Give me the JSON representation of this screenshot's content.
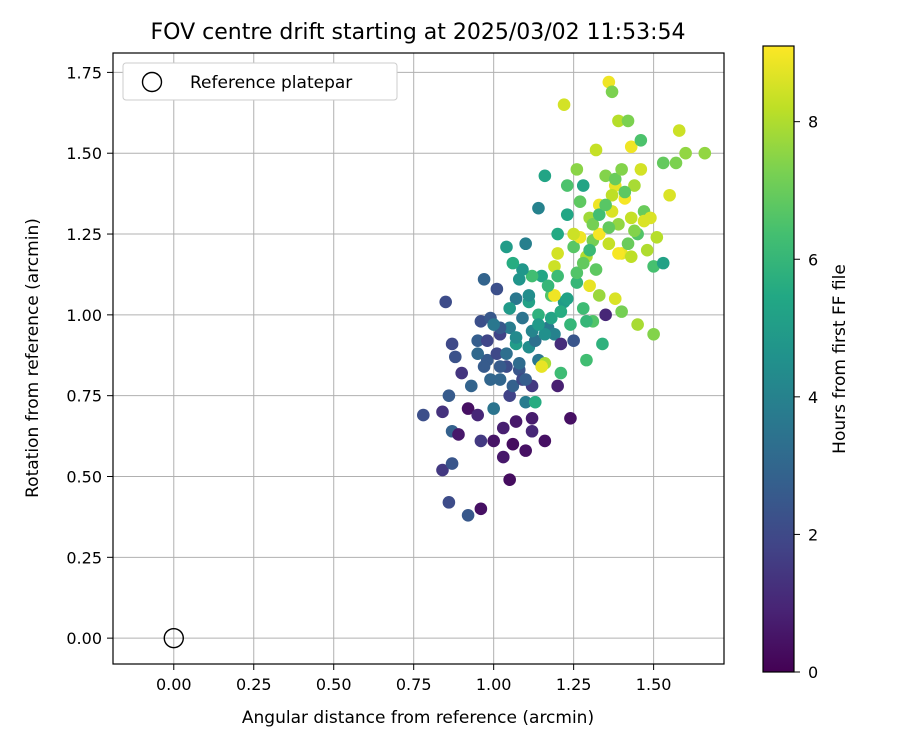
{
  "chart_data": {
    "type": "scatter",
    "title": "FOV centre drift starting at 2025/03/02 11:53:54",
    "xlabel": "Angular distance from reference (arcmin)",
    "ylabel": "Rotation from reference (arcmin)",
    "xlim": [
      -0.19,
      1.72
    ],
    "ylim": [
      -0.08,
      1.81
    ],
    "xticks": [
      "0.00",
      "0.25",
      "0.50",
      "0.75",
      "1.00",
      "1.25",
      "1.50"
    ],
    "yticks": [
      "0.00",
      "0.25",
      "0.50",
      "0.75",
      "1.00",
      "1.25",
      "1.50",
      "1.75"
    ],
    "grid": true,
    "legend": {
      "position": "top-left",
      "entries": [
        "Reference platepar"
      ]
    },
    "reference_point": {
      "x": 0.0,
      "y": 0.0,
      "marker": "open-circle"
    },
    "colorbar": {
      "label": "Hours from first FF file",
      "range": [
        0,
        9.1
      ],
      "ticks": [
        "0",
        "2",
        "4",
        "6",
        "8"
      ],
      "colormap": "viridis"
    },
    "points": [
      [
        0.78,
        0.69,
        2.2
      ],
      [
        0.84,
        0.52,
        1.5
      ],
      [
        0.86,
        0.42,
        2.1
      ],
      [
        0.87,
        0.54,
        2.4
      ],
      [
        0.85,
        1.04,
        2.1
      ],
      [
        0.86,
        0.75,
        2.6
      ],
      [
        0.84,
        0.7,
        1.3
      ],
      [
        0.87,
        0.64,
        2.8
      ],
      [
        0.88,
        0.87,
        2.3
      ],
      [
        0.87,
        0.91,
        2.0
      ],
      [
        0.89,
        0.63,
        0.6
      ],
      [
        0.9,
        0.82,
        1.4
      ],
      [
        0.92,
        0.71,
        0.4
      ],
      [
        0.92,
        0.38,
        2.5
      ],
      [
        0.95,
        0.69,
        1.0
      ],
      [
        0.96,
        0.4,
        0.4
      ],
      [
        0.96,
        0.61,
        1.5
      ],
      [
        0.95,
        0.92,
        2.7
      ],
      [
        0.96,
        0.98,
        2.2
      ],
      [
        0.97,
        1.11,
        2.9
      ],
      [
        0.98,
        0.92,
        1.9
      ],
      [
        0.99,
        0.99,
        2.5
      ],
      [
        1.0,
        0.71,
        3.5
      ],
      [
        1.0,
        0.61,
        0.5
      ],
      [
        0.98,
        0.86,
        2.6
      ],
      [
        1.01,
        0.88,
        2.0
      ],
      [
        1.01,
        1.08,
        2.2
      ],
      [
        1.02,
        0.94,
        1.8
      ],
      [
        1.02,
        0.8,
        3.0
      ],
      [
        1.03,
        0.65,
        0.8
      ],
      [
        1.03,
        0.56,
        0.6
      ],
      [
        1.04,
        0.84,
        2.1
      ],
      [
        1.04,
        1.21,
        5.0
      ],
      [
        1.05,
        0.49,
        0.3
      ],
      [
        1.05,
        0.75,
        1.8
      ],
      [
        1.05,
        0.96,
        3.8
      ],
      [
        1.06,
        0.78,
        2.8
      ],
      [
        1.07,
        1.05,
        3.6
      ],
      [
        1.06,
        0.6,
        0.3
      ],
      [
        1.07,
        0.67,
        0.6
      ],
      [
        1.07,
        0.91,
        5.0
      ],
      [
        1.08,
        0.83,
        2.4
      ],
      [
        1.08,
        1.11,
        4.7
      ],
      [
        1.09,
        0.8,
        2.0
      ],
      [
        1.1,
        0.58,
        0.4
      ],
      [
        1.1,
        0.73,
        3.8
      ],
      [
        1.1,
        1.22,
        3.9
      ],
      [
        1.11,
        0.9,
        4.4
      ],
      [
        1.11,
        1.04,
        5.2
      ],
      [
        1.12,
        0.78,
        1.5
      ],
      [
        1.12,
        0.68,
        0.7
      ],
      [
        1.12,
        0.64,
        1.0
      ],
      [
        1.13,
        0.73,
        5.6
      ],
      [
        1.14,
        1.33,
        4.0
      ],
      [
        1.14,
        0.86,
        3.6
      ],
      [
        1.15,
        1.12,
        5.4
      ],
      [
        1.16,
        0.85,
        7.9
      ],
      [
        1.16,
        1.43,
        5.3
      ],
      [
        1.16,
        0.61,
        0.4
      ],
      [
        1.17,
        0.96,
        3.7
      ],
      [
        1.18,
        1.06,
        6.6
      ],
      [
        1.19,
        0.94,
        4.0
      ],
      [
        1.19,
        1.15,
        8.4
      ],
      [
        1.2,
        1.25,
        5.5
      ],
      [
        1.2,
        0.78,
        0.8
      ],
      [
        1.21,
        0.82,
        6.2
      ],
      [
        1.21,
        0.91,
        1.2
      ],
      [
        1.22,
        1.65,
        8.5
      ],
      [
        1.22,
        1.04,
        5.0
      ],
      [
        1.23,
        1.4,
        6.5
      ],
      [
        1.23,
        1.31,
        5.4
      ],
      [
        1.24,
        0.97,
        6.0
      ],
      [
        1.24,
        0.68,
        0.4
      ],
      [
        1.25,
        0.92,
        2.4
      ],
      [
        1.25,
        1.21,
        6.7
      ],
      [
        1.26,
        1.45,
        7.5
      ],
      [
        1.26,
        1.1,
        6.0
      ],
      [
        1.27,
        1.35,
        6.8
      ],
      [
        1.27,
        1.24,
        8.9
      ],
      [
        1.28,
        1.4,
        5.3
      ],
      [
        1.28,
        1.02,
        6.2
      ],
      [
        1.29,
        1.18,
        8.0
      ],
      [
        1.29,
        0.86,
        6.3
      ],
      [
        1.3,
        1.3,
        7.8
      ],
      [
        1.3,
        1.09,
        8.8
      ],
      [
        1.31,
        0.98,
        6.6
      ],
      [
        1.31,
        1.23,
        7.2
      ],
      [
        1.32,
        1.51,
        8.3
      ],
      [
        1.32,
        1.14,
        6.8
      ],
      [
        1.33,
        1.34,
        8.9
      ],
      [
        1.33,
        1.06,
        7.7
      ],
      [
        1.34,
        0.91,
        5.8
      ],
      [
        1.35,
        1.43,
        7.4
      ],
      [
        1.35,
        1.0,
        1.0
      ],
      [
        1.36,
        1.72,
        8.9
      ],
      [
        1.36,
        1.22,
        8.3
      ],
      [
        1.37,
        1.69,
        7.3
      ],
      [
        1.37,
        1.32,
        8.6
      ],
      [
        1.38,
        1.05,
        8.6
      ],
      [
        1.38,
        1.4,
        8.8
      ],
      [
        1.39,
        1.6,
        8.1
      ],
      [
        1.39,
        1.28,
        7.6
      ],
      [
        1.4,
        1.19,
        8.8
      ],
      [
        1.4,
        1.01,
        7.2
      ],
      [
        1.41,
        1.36,
        9.0
      ],
      [
        1.42,
        1.6,
        7.3
      ],
      [
        1.42,
        1.22,
        7.0
      ],
      [
        1.43,
        1.52,
        8.9
      ],
      [
        1.43,
        1.3,
        8.3
      ],
      [
        1.44,
        1.4,
        7.9
      ],
      [
        1.45,
        0.97,
        7.9
      ],
      [
        1.45,
        1.25,
        6.6
      ],
      [
        1.46,
        1.54,
        6.5
      ],
      [
        1.46,
        1.45,
        8.5
      ],
      [
        1.47,
        1.32,
        7.0
      ],
      [
        1.48,
        1.2,
        8.0
      ],
      [
        1.49,
        1.3,
        8.6
      ],
      [
        1.5,
        0.94,
        7.4
      ],
      [
        1.5,
        1.15,
        6.4
      ],
      [
        1.51,
        1.24,
        8.1
      ],
      [
        1.53,
        1.16,
        5.2
      ],
      [
        1.53,
        1.47,
        6.9
      ],
      [
        1.55,
        1.37,
        8.6
      ],
      [
        1.57,
        1.47,
        7.3
      ],
      [
        1.58,
        1.57,
        8.4
      ],
      [
        1.6,
        1.5,
        7.6
      ],
      [
        1.66,
        1.5,
        7.6
      ],
      [
        1.25,
        1.25,
        8.4
      ],
      [
        1.33,
        1.25,
        9.0
      ],
      [
        1.39,
        1.19,
        9.0
      ],
      [
        1.2,
        1.19,
        8.5
      ],
      [
        1.36,
        1.27,
        6.9
      ],
      [
        1.37,
        1.37,
        8.2
      ],
      [
        1.41,
        1.38,
        6.8
      ],
      [
        1.44,
        1.26,
        7.4
      ],
      [
        1.47,
        1.29,
        8.6
      ],
      [
        1.43,
        1.18,
        8.2
      ],
      [
        1.15,
        0.84,
        8.8
      ],
      [
        1.19,
        1.06,
        8.9
      ],
      [
        1.29,
        0.98,
        6.0
      ],
      [
        1.09,
        0.99,
        3.5
      ],
      [
        1.12,
        1.12,
        6.3
      ],
      [
        1.14,
        1.0,
        5.8
      ],
      [
        1.17,
        1.09,
        6.0
      ],
      [
        1.2,
        1.12,
        6.2
      ],
      [
        1.02,
        0.96,
        2.5
      ],
      [
        1.05,
        1.02,
        4.9
      ],
      [
        1.08,
        0.85,
        3.2
      ],
      [
        1.0,
        0.97,
        3.6
      ],
      [
        0.97,
        0.84,
        2.6
      ],
      [
        0.95,
        0.88,
        3.1
      ],
      [
        0.93,
        0.78,
        2.9
      ],
      [
        1.13,
        0.92,
        3.4
      ],
      [
        1.16,
        0.94,
        4.5
      ],
      [
        1.18,
        0.99,
        5.3
      ],
      [
        1.21,
        1.01,
        5.6
      ],
      [
        1.23,
        1.05,
        5.2
      ],
      [
        1.26,
        1.13,
        6.6
      ],
      [
        1.28,
        1.16,
        6.9
      ],
      [
        1.3,
        1.2,
        6.1
      ],
      [
        1.31,
        1.28,
        7.2
      ],
      [
        1.33,
        1.31,
        6.3
      ],
      [
        1.35,
        1.34,
        6.7
      ],
      [
        1.38,
        1.42,
        7.0
      ],
      [
        1.4,
        1.45,
        7.4
      ],
      [
        1.09,
        1.14,
        4.8
      ],
      [
        1.11,
        1.06,
        4.4
      ],
      [
        1.06,
        1.16,
        5.6
      ],
      [
        1.12,
        0.95,
        4.1
      ],
      [
        1.14,
        0.97,
        4.9
      ],
      [
        0.99,
        0.8,
        3.0
      ],
      [
        1.04,
        0.88,
        3.3
      ],
      [
        1.07,
        0.93,
        4.3
      ],
      [
        1.02,
        0.84,
        2.6
      ],
      [
        1.1,
        0.8,
        2.7
      ]
    ]
  }
}
